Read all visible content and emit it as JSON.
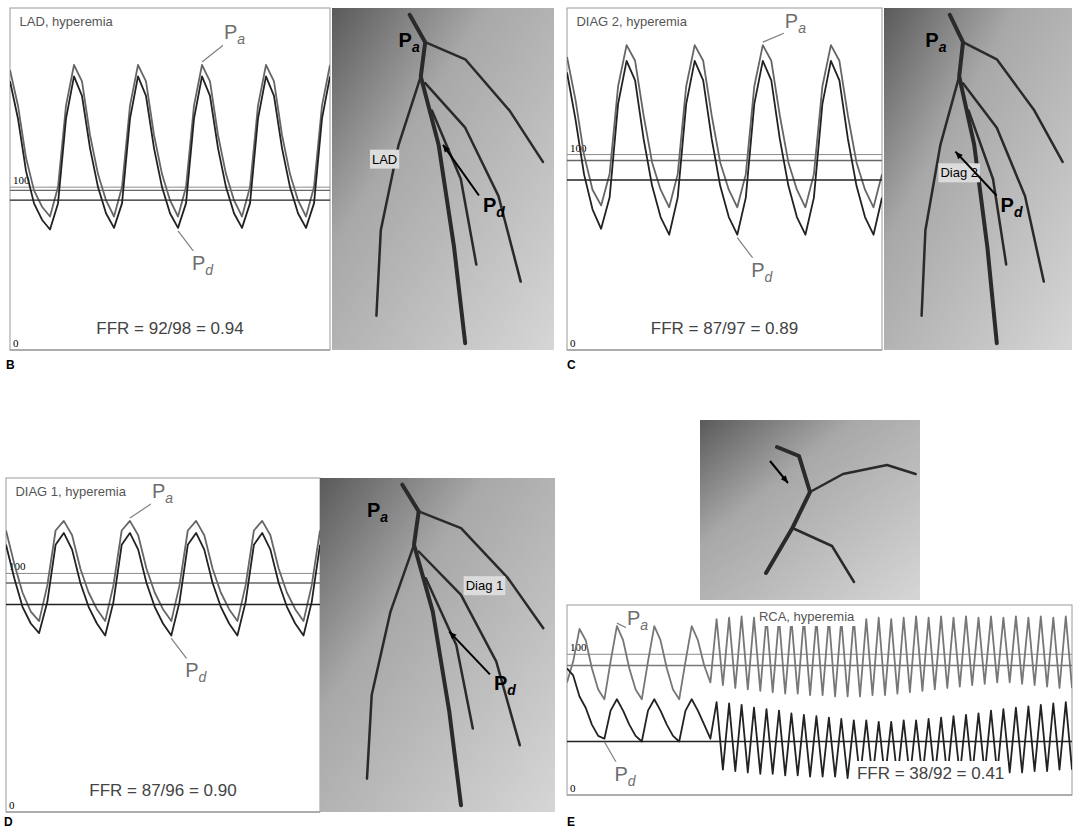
{
  "chart_data": [
    {
      "type": "line",
      "panel": "B",
      "title": "LAD, hyperemia",
      "ylim": [
        0,
        210
      ],
      "yticks": [
        0,
        100
      ],
      "grid": true,
      "series": [
        {
          "name": "Pa",
          "color": "#666666",
          "mean": 98,
          "values": [
            172,
            150,
            118,
            98,
            88,
            82,
            100,
            150,
            175,
            165,
            132,
            108,
            92,
            82,
            100,
            150,
            175,
            165,
            132,
            108,
            92,
            82,
            100,
            150,
            175,
            165,
            132,
            108,
            92,
            82,
            100,
            150,
            175,
            165,
            132,
            108,
            92,
            82,
            100,
            150,
            175
          ]
        },
        {
          "name": "Pd",
          "color": "#222222",
          "mean": 92,
          "values": [
            165,
            142,
            110,
            90,
            80,
            74,
            90,
            142,
            168,
            156,
            124,
            100,
            84,
            75,
            90,
            142,
            168,
            156,
            124,
            100,
            84,
            75,
            90,
            142,
            168,
            156,
            124,
            100,
            84,
            75,
            90,
            142,
            168,
            156,
            124,
            100,
            84,
            75,
            90,
            142,
            168
          ]
        }
      ],
      "annotations": [
        "FFR = 92/98 = 0.94"
      ],
      "image_labels": [
        "Pa",
        "LAD",
        "Pd"
      ]
    },
    {
      "type": "line",
      "panel": "C",
      "title": "DIAG 2, hyperemia",
      "ylim": [
        0,
        175
      ],
      "yticks": [
        0,
        100
      ],
      "grid": true,
      "series": [
        {
          "name": "Pa",
          "color": "#666666",
          "mean": 97,
          "values": [
            150,
            128,
            100,
            82,
            74,
            90,
            135,
            156,
            148,
            120,
            96,
            82,
            73,
            90,
            135,
            156,
            148,
            120,
            96,
            82,
            73,
            90,
            135,
            156,
            148,
            120,
            96,
            82,
            73,
            90,
            135,
            156,
            148,
            120,
            96,
            82,
            73,
            90
          ]
        },
        {
          "name": "Pd",
          "color": "#222222",
          "mean": 87,
          "values": [
            142,
            118,
            90,
            72,
            62,
            78,
            126,
            148,
            138,
            108,
            84,
            68,
            59,
            78,
            126,
            148,
            138,
            108,
            84,
            68,
            59,
            78,
            126,
            148,
            138,
            108,
            84,
            68,
            59,
            78,
            126,
            148,
            138,
            108,
            84,
            68,
            59,
            78
          ]
        }
      ],
      "annotations": [
        "FFR = 87/97 = 0.89"
      ],
      "image_labels": [
        "Pa",
        "Diag 2",
        "Pd"
      ]
    },
    {
      "type": "line",
      "panel": "D",
      "title": "DIAG 1, hyperemia",
      "ylim": [
        0,
        140
      ],
      "yticks": [
        0,
        100
      ],
      "grid": true,
      "series": [
        {
          "name": "Pa",
          "color": "#666666",
          "mean": 96,
          "values": [
            118,
            104,
            92,
            84,
            80,
            95,
            118,
            122,
            116,
            102,
            92,
            85,
            80,
            95,
            118,
            122,
            116,
            102,
            92,
            85,
            80,
            95,
            118,
            122,
            116,
            102,
            92,
            85,
            80,
            95,
            118,
            122,
            116,
            102,
            92,
            85,
            80,
            95,
            118
          ]
        },
        {
          "name": "Pd",
          "color": "#222222",
          "mean": 87,
          "values": [
            112,
            98,
            86,
            79,
            75,
            88,
            112,
            117,
            110,
            96,
            86,
            79,
            74,
            88,
            112,
            117,
            110,
            96,
            86,
            79,
            74,
            88,
            112,
            117,
            110,
            96,
            86,
            79,
            74,
            88,
            112,
            117,
            110,
            96,
            86,
            79,
            74,
            88,
            112
          ]
        }
      ],
      "annotations": [
        "FFR = 87/96 = 0.90"
      ],
      "image_labels": [
        "Pa",
        "Diag 1",
        "Pd"
      ]
    },
    {
      "type": "line",
      "panel": "E",
      "title": "RCA, hyperemia",
      "ylim": [
        0,
        135
      ],
      "yticks": [
        0,
        100
      ],
      "grid": true,
      "series": [
        {
          "name": "Pa",
          "color": "#777777",
          "mean": 92,
          "values": [
            80,
            95,
            118,
            110,
            90,
            75,
            68,
            95,
            120,
            110,
            90,
            75,
            68,
            95,
            120,
            110,
            90,
            75,
            68,
            95,
            120,
            110,
            92,
            80,
            125,
            78,
            126,
            76,
            127,
            75,
            126,
            74,
            127,
            73,
            126,
            72,
            125,
            72,
            126,
            71,
            125,
            71,
            126,
            70,
            125,
            70,
            126,
            70,
            125,
            71,
            126,
            71,
            125,
            72,
            126,
            73,
            127,
            74,
            126,
            75,
            127,
            76,
            126,
            77,
            127,
            78,
            126,
            79,
            127,
            80,
            126,
            80,
            127,
            79,
            126,
            78,
            127,
            77,
            126,
            76,
            127,
            76
          ]
        },
        {
          "name": "Pd",
          "color": "#222222",
          "mean": 38,
          "values": [
            90,
            85,
            70,
            62,
            50,
            42,
            40,
            60,
            68,
            60,
            50,
            42,
            38,
            60,
            68,
            60,
            50,
            42,
            38,
            60,
            68,
            60,
            50,
            40,
            66,
            18,
            65,
            17,
            64,
            16,
            62,
            15,
            61,
            15,
            60,
            14,
            58,
            14,
            57,
            13,
            56,
            13,
            55,
            13,
            54,
            12,
            53,
            12,
            53,
            12,
            52,
            12,
            52,
            12,
            53,
            12,
            53,
            13,
            54,
            13,
            55,
            13,
            56,
            14,
            57,
            14,
            58,
            15,
            60,
            15,
            61,
            16,
            62,
            16,
            63,
            17,
            64,
            17,
            65,
            18,
            66,
            18
          ]
        }
      ],
      "annotations": [
        "FFR = 38/92 = 0.41"
      ],
      "image_labels": []
    }
  ]
}
